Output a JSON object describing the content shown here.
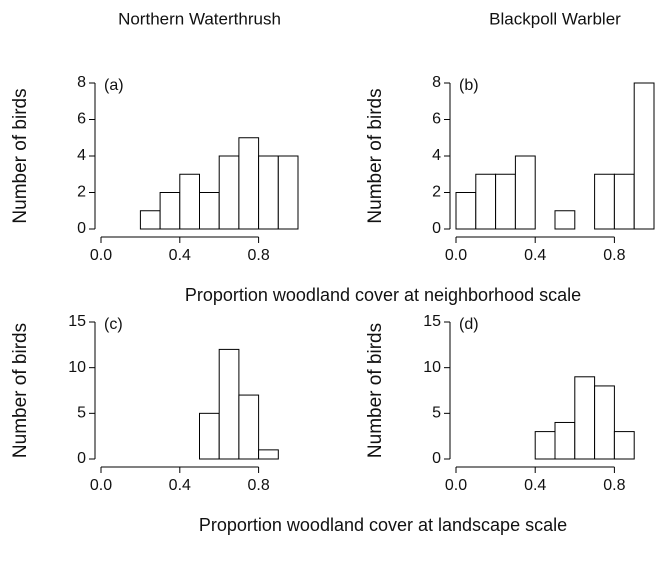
{
  "chart_data": [
    {
      "type": "histogram",
      "title": "Northern Waterthrush",
      "panel_label": "(a)",
      "ylabel": "Number of birds",
      "xlabel": "Proportion woodland cover at neighborhood scale",
      "bins": [
        0,
        0.1,
        0.2,
        0.3,
        0.4,
        0.5,
        0.6,
        0.7,
        0.8,
        0.9,
        1.0
      ],
      "counts": [
        0,
        0,
        1,
        2,
        3,
        2,
        4,
        5,
        4,
        4
      ],
      "xlim": [
        0,
        1
      ],
      "ylim": [
        0,
        8
      ],
      "xticks": [
        {
          "value": 0,
          "label": "0.0"
        },
        0.4,
        0.8
      ],
      "yticks": [
        0,
        2,
        4,
        6,
        8
      ],
      "color": "#ffffff"
    },
    {
      "type": "histogram",
      "title": "Blackpoll Warbler",
      "panel_label": "(b)",
      "ylabel": "Number of birds",
      "bins": [
        0,
        0.1,
        0.2,
        0.3,
        0.4,
        0.5,
        0.6,
        0.7,
        0.8,
        0.9,
        1.0
      ],
      "counts": [
        2,
        3,
        3,
        4,
        0,
        1,
        0,
        3,
        3,
        8
      ],
      "xlim": [
        0,
        1
      ],
      "ylim": [
        0,
        8
      ],
      "xticks": [
        {
          "value": 0,
          "label": "0.0"
        },
        0.4,
        0.8
      ],
      "yticks": [
        0,
        2,
        4,
        6,
        8
      ],
      "color": "#ffffff"
    },
    {
      "type": "histogram",
      "panel_label": "(c)",
      "ylabel": "Number of birds",
      "xlabel": "Proportion woodland cover at landscape scale",
      "bins": [
        0,
        0.1,
        0.2,
        0.3,
        0.4,
        0.5,
        0.6,
        0.7,
        0.8,
        0.9
      ],
      "counts": [
        0,
        0,
        0,
        0,
        0,
        5,
        12,
        7,
        1
      ],
      "xlim": [
        0,
        1
      ],
      "ylim": [
        0,
        15
      ],
      "xticks": [
        {
          "value": 0,
          "label": "0.0"
        },
        0.4,
        0.8
      ],
      "yticks": [
        0,
        5,
        10,
        15
      ],
      "color": "#ffffff"
    },
    {
      "type": "histogram",
      "panel_label": "(d)",
      "ylabel": "Number of birds",
      "bins": [
        0,
        0.1,
        0.2,
        0.3,
        0.4,
        0.5,
        0.6,
        0.7,
        0.8,
        0.9
      ],
      "counts": [
        0,
        0,
        0,
        0,
        3,
        4,
        9,
        8,
        3
      ],
      "xlim": [
        0,
        1
      ],
      "ylim": [
        0,
        15
      ],
      "xticks": [
        {
          "value": 0,
          "label": "0.0"
        },
        0.4,
        0.8
      ],
      "yticks": [
        0,
        5,
        10,
        15
      ],
      "color": "#ffffff"
    }
  ]
}
